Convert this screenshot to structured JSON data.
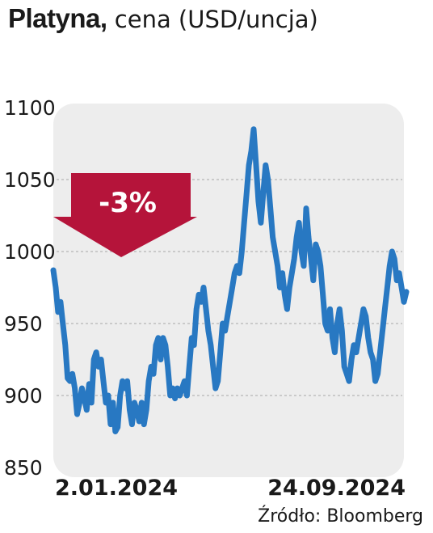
{
  "title": {
    "bold": "Platyna,",
    "rest": " cena (USD/uncja)"
  },
  "source": "Źródło: Bloomberg",
  "annotation": "-3%",
  "colors": {
    "line": "#2878c2",
    "arrow": "#b5143a",
    "panel": "#ededed",
    "grid": "#bfbfbf"
  },
  "chart_data": {
    "type": "line",
    "title": "Platyna, cena (USD/uncja)",
    "ylim": [
      850,
      1100
    ],
    "yticks": [
      850,
      900,
      950,
      1000,
      1050,
      1100
    ],
    "x_labels": [
      "2.01.2024",
      "24.09.2024"
    ],
    "grid": "horizontal dashed",
    "series": [
      {
        "values": [
          987,
          975,
          958,
          965,
          950,
          935,
          912,
          910,
          915,
          905,
          887,
          895,
          905,
          898,
          890,
          908,
          895,
          925,
          930,
          920,
          925,
          910,
          895,
          900,
          880,
          895,
          875,
          878,
          900,
          910,
          905,
          910,
          890,
          880,
          895,
          890,
          882,
          895,
          880,
          890,
          910,
          920,
          915,
          935,
          940,
          925,
          940,
          935,
          920,
          900,
          905,
          898,
          905,
          900,
          905,
          910,
          900,
          920,
          940,
          935,
          960,
          970,
          965,
          975,
          960,
          945,
          935,
          920,
          905,
          910,
          930,
          950,
          945,
          955,
          965,
          975,
          985,
          990,
          985,
          1000,
          1020,
          1040,
          1060,
          1070,
          1085,
          1060,
          1035,
          1020,
          1040,
          1060,
          1050,
          1030,
          1010,
          1000,
          990,
          975,
          985,
          970,
          960,
          975,
          985,
          995,
          1010,
          1020,
          1000,
          990,
          1030,
          1010,
          995,
          980,
          1005,
          1000,
          990,
          970,
          950,
          945,
          960,
          940,
          930,
          950,
          960,
          945,
          920,
          915,
          910,
          925,
          935,
          930,
          940,
          950,
          960,
          955,
          940,
          930,
          925,
          910,
          915,
          930,
          945,
          960,
          975,
          990,
          1000,
          995,
          980,
          985,
          975,
          965,
          972
        ]
      }
    ]
  }
}
